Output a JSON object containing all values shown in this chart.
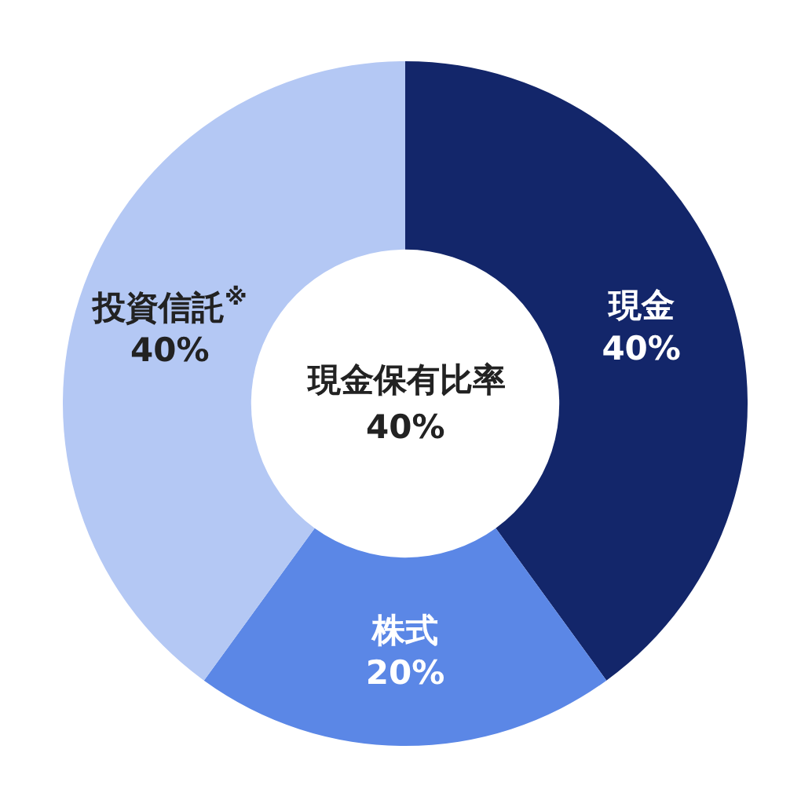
{
  "chart_data": {
    "type": "donut",
    "categories": [
      "現金",
      "株式",
      "投資信託$^{※}$"
    ],
    "values": [
      40,
      20,
      40
    ],
    "colors": [
      "#13266a",
      "#5b87e6",
      "#b4c8f4"
    ],
    "value_labels": [
      "40%",
      "20%",
      "40%"
    ],
    "annotations": [
      "現金保有比率",
      "40%"
    ]
  }
}
